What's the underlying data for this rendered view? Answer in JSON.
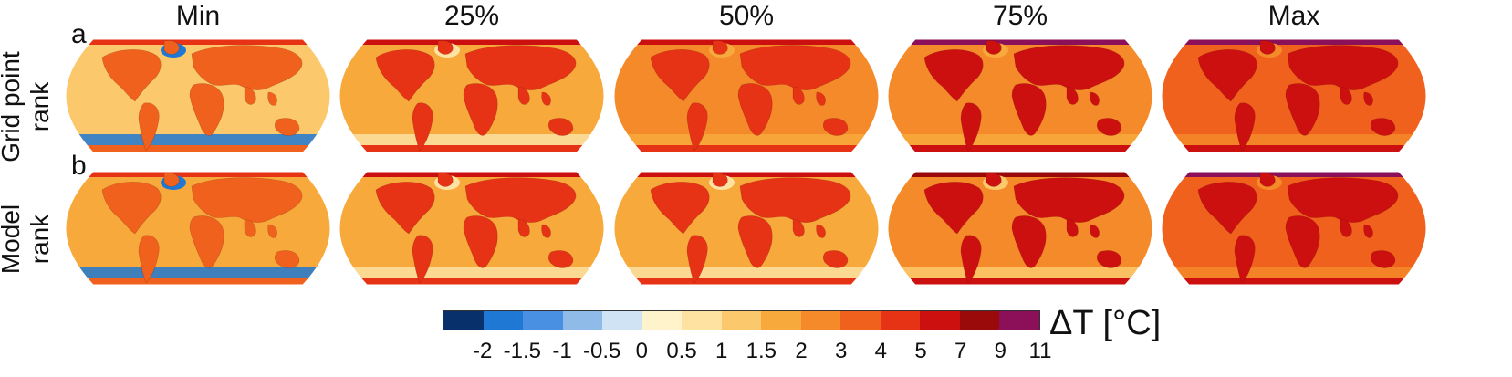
{
  "columns": [
    "Min",
    "25%",
    "50%",
    "75%",
    "Max"
  ],
  "rows": [
    {
      "letter": "a",
      "label_line1": "Grid point",
      "label_line2": "rank"
    },
    {
      "letter": "b",
      "label_line1": "Model",
      "label_line2": "rank"
    }
  ],
  "colorbar": {
    "colors": [
      "#08306b",
      "#1f78d4",
      "#4a90e2",
      "#8fbbe9",
      "#cfe3f5",
      "#fff3cc",
      "#fde2a2",
      "#fbc96b",
      "#f7a93b",
      "#f58a2a",
      "#f0611d",
      "#e63316",
      "#cc1010",
      "#9b0a0a",
      "#8c0f5a"
    ],
    "tick_labels": [
      "-2",
      "-1.5",
      "-1",
      "-0.5",
      "0",
      "0.5",
      "1",
      "1.5",
      "2",
      "3",
      "4",
      "5",
      "7",
      "9",
      "11"
    ],
    "label": "ΔT [°C]"
  },
  "maps": [
    {
      "id": "a-min",
      "base": "#fbc96b",
      "land": "#f0611d",
      "pole": "#e63316",
      "cold": "#1f78d4"
    },
    {
      "id": "a-25",
      "base": "#f7a93b",
      "land": "#e63316",
      "pole": "#cc1010",
      "cold": "#fde2a2"
    },
    {
      "id": "a-50",
      "base": "#f58a2a",
      "land": "#e63316",
      "pole": "#cc1010",
      "cold": "#f7a93b"
    },
    {
      "id": "a-75",
      "base": "#f58a2a",
      "land": "#cc1010",
      "pole": "#8c0f5a",
      "cold": "#f7a93b"
    },
    {
      "id": "a-max",
      "base": "#f0611d",
      "land": "#cc1010",
      "pole": "#8c0f5a",
      "cold": "#f58a2a"
    },
    {
      "id": "b-min",
      "base": "#f7a93b",
      "land": "#f0611d",
      "pole": "#e63316",
      "cold": "#1f78d4"
    },
    {
      "id": "b-25",
      "base": "#f7a93b",
      "land": "#e63316",
      "pole": "#cc1010",
      "cold": "#fde2a2"
    },
    {
      "id": "b-50",
      "base": "#f7a93b",
      "land": "#e63316",
      "pole": "#cc1010",
      "cold": "#fde2a2"
    },
    {
      "id": "b-75",
      "base": "#f58a2a",
      "land": "#cc1010",
      "pole": "#9b0a0a",
      "cold": "#fbc96b"
    },
    {
      "id": "b-max",
      "base": "#f0611d",
      "land": "#cc1010",
      "pole": "#8c0f5a",
      "cold": "#f58a2a"
    }
  ]
}
